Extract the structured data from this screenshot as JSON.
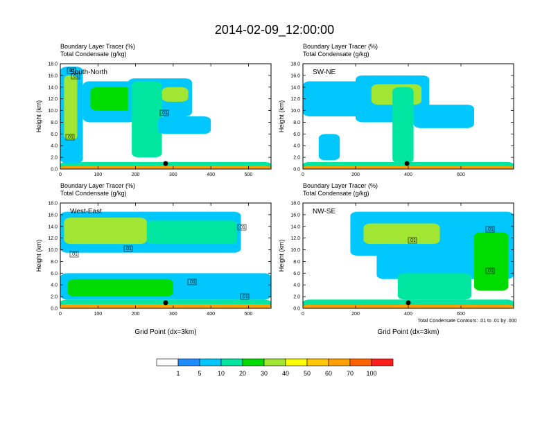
{
  "figure": {
    "title": "2014-02-09_12:00:00",
    "xlabel": "Grid Point (dx=3km)",
    "ylabel": "Height (km)",
    "contour_note": "Total Condensate Contours: .01 to .01 by .000"
  },
  "colors": {
    "levels": [
      "#ffffff",
      "#1e8cff",
      "#00c8ff",
      "#00e6a0",
      "#00dc00",
      "#a0e632",
      "#ffff00",
      "#ffc800",
      "#ffa000",
      "#ff6400",
      "#ff1e1e"
    ],
    "marker": "#000000"
  },
  "colorbar": {
    "ticks": [
      "1",
      "5",
      "10",
      "20",
      "30",
      "40",
      "50",
      "60",
      "70",
      "100"
    ]
  },
  "chart_data": [
    {
      "type": "heatmap",
      "panel": "South-North",
      "title_line1": "Boundary Layer Tracer   (%)",
      "title_line2": "Total Condensate   (g/kg)",
      "ylabel": "Height (km)",
      "ylim": [
        0,
        18
      ],
      "yticks": [
        "0.0",
        "2.0",
        "4.0",
        "6.0",
        "8.0",
        "10.0",
        "12.0",
        "14.0",
        "16.0",
        "18.0"
      ],
      "xlim": [
        0,
        560
      ],
      "xticks": [
        "0",
        "100",
        "200",
        "300",
        "400",
        "500"
      ],
      "marker_x": 280,
      "contour_labels": [
        ".01",
        ".01",
        ".01",
        ".01"
      ],
      "features": [
        {
          "level": 3,
          "x0": 0,
          "x1": 560,
          "y0": 0,
          "y1": 1.2
        },
        {
          "level": 8,
          "x0": 0,
          "x1": 560,
          "y0": 0,
          "y1": 0.5
        },
        {
          "level": 2,
          "x0": 0,
          "x1": 60,
          "y0": 1,
          "y1": 17.5
        },
        {
          "level": 5,
          "x0": 10,
          "x1": 45,
          "y0": 5,
          "y1": 16
        },
        {
          "level": 2,
          "x0": 60,
          "x1": 200,
          "y0": 8,
          "y1": 15
        },
        {
          "level": 4,
          "x0": 80,
          "x1": 190,
          "y0": 10,
          "y1": 14
        },
        {
          "level": 2,
          "x0": 180,
          "x1": 350,
          "y0": 9,
          "y1": 15.5
        },
        {
          "level": 5,
          "x0": 270,
          "x1": 340,
          "y0": 11.5,
          "y1": 14
        },
        {
          "level": 3,
          "x0": 190,
          "x1": 270,
          "y0": 2,
          "y1": 15
        },
        {
          "level": 2,
          "x0": 260,
          "x1": 400,
          "y0": 6,
          "y1": 9
        }
      ]
    },
    {
      "type": "heatmap",
      "panel": "SW-NE",
      "title_line1": "Boundary Layer Tracer   (%)",
      "title_line2": "Total Condensate   (g/kg)",
      "ylabel": "Height (km)",
      "ylim": [
        0,
        18
      ],
      "yticks": [
        "0.0",
        "2.0",
        "4.0",
        "6.0",
        "8.0",
        "10.0",
        "12.0",
        "14.0",
        "16.0",
        "18.0"
      ],
      "xlim": [
        0,
        800
      ],
      "xticks": [
        "0",
        "200",
        "400",
        "600"
      ],
      "marker_x": 395,
      "contour_labels": [],
      "features": [
        {
          "level": 3,
          "x0": 0,
          "x1": 800,
          "y0": 0,
          "y1": 1.2
        },
        {
          "level": 8,
          "x0": 0,
          "x1": 800,
          "y0": 0,
          "y1": 0.5
        },
        {
          "level": 2,
          "x0": 0,
          "x1": 300,
          "y0": 9,
          "y1": 15
        },
        {
          "level": 2,
          "x0": 200,
          "x1": 480,
          "y0": 8,
          "y1": 16
        },
        {
          "level": 5,
          "x0": 260,
          "x1": 450,
          "y0": 11,
          "y1": 14.5
        },
        {
          "level": 3,
          "x0": 340,
          "x1": 420,
          "y0": 1,
          "y1": 14
        },
        {
          "level": 2,
          "x0": 420,
          "x1": 650,
          "y0": 7,
          "y1": 11
        },
        {
          "level": 2,
          "x0": 60,
          "x1": 140,
          "y0": 1.5,
          "y1": 6
        }
      ]
    },
    {
      "type": "heatmap",
      "panel": "West-East",
      "title_line1": "Boundary Layer Tracer   (%)",
      "title_line2": "Total Condensate   (g/kg)",
      "ylabel": "Height (km)",
      "xlabel": "Grid Point (dx=3km)",
      "ylim": [
        0,
        18
      ],
      "yticks": [
        "0.0",
        "2.0",
        "4.0",
        "6.0",
        "8.0",
        "10.0",
        "12.0",
        "14.0",
        "16.0",
        "18.0"
      ],
      "xlim": [
        0,
        560
      ],
      "xticks": [
        "0",
        "100",
        "200",
        "300",
        "400",
        "500"
      ],
      "marker_x": 280,
      "contour_labels": [
        ".01",
        ".01",
        ".01",
        ".01",
        ".01"
      ],
      "features": [
        {
          "level": 3,
          "x0": 0,
          "x1": 560,
          "y0": 0,
          "y1": 1.5
        },
        {
          "level": 8,
          "x0": 0,
          "x1": 560,
          "y0": 0,
          "y1": 0.7
        },
        {
          "level": 2,
          "x0": 0,
          "x1": 480,
          "y0": 9.5,
          "y1": 16.5
        },
        {
          "level": 5,
          "x0": 10,
          "x1": 230,
          "y0": 11,
          "y1": 15.5
        },
        {
          "level": 3,
          "x0": 230,
          "x1": 470,
          "y0": 11,
          "y1": 15
        },
        {
          "level": 2,
          "x0": 0,
          "x1": 560,
          "y0": 1.5,
          "y1": 6
        },
        {
          "level": 4,
          "x0": 20,
          "x1": 300,
          "y0": 2,
          "y1": 5
        }
      ]
    },
    {
      "type": "heatmap",
      "panel": "NW-SE",
      "title_line1": "Boundary Layer Tracer   (%)",
      "title_line2": "Total Condensate   (g/kg)",
      "ylabel": "Height (km)",
      "xlabel": "Grid Point (dx=3km)",
      "ylim": [
        0,
        18
      ],
      "yticks": [
        "0.0",
        "2.0",
        "4.0",
        "6.0",
        "8.0",
        "10.0",
        "12.0",
        "14.0",
        "16.0",
        "18.0"
      ],
      "xlim": [
        0,
        800
      ],
      "xticks": [
        "0",
        "200",
        "400",
        "600"
      ],
      "marker_x": 400,
      "contour_labels": [
        ".01",
        ".01",
        ".01"
      ],
      "features": [
        {
          "level": 3,
          "x0": 0,
          "x1": 800,
          "y0": 0,
          "y1": 1.5
        },
        {
          "level": 8,
          "x0": 0,
          "x1": 800,
          "y0": 0,
          "y1": 0.6
        },
        {
          "level": 2,
          "x0": 180,
          "x1": 800,
          "y0": 9,
          "y1": 16.5
        },
        {
          "level": 5,
          "x0": 230,
          "x1": 520,
          "y0": 11,
          "y1": 14.5
        },
        {
          "level": 2,
          "x0": 280,
          "x1": 800,
          "y0": 5,
          "y1": 11
        },
        {
          "level": 3,
          "x0": 360,
          "x1": 640,
          "y0": 1.5,
          "y1": 6
        },
        {
          "level": 4,
          "x0": 650,
          "x1": 780,
          "y0": 3,
          "y1": 13
        }
      ]
    }
  ]
}
